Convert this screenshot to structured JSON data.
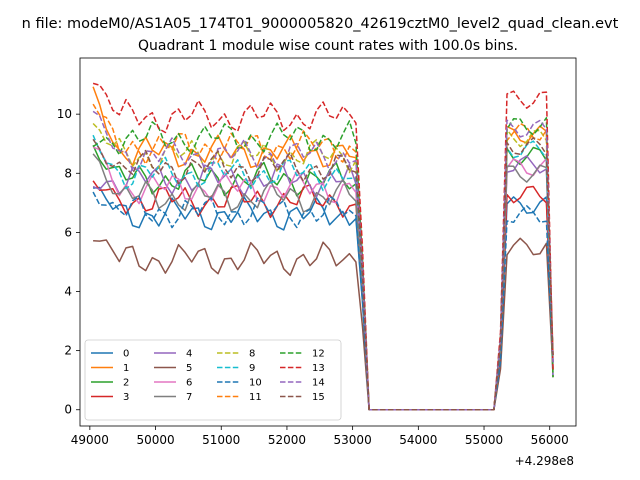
{
  "figure": {
    "suptitle": "n file: modeM0/AS1A05_174T01_9000005820_42619cztM0_level2_quad_clean.evt"
  },
  "chart_data": {
    "type": "line",
    "title": "Quadrant 1 module wise count rates with 100.0s bins.",
    "xlabel": "",
    "ylabel": "",
    "x_offset_label": "+4.298e8",
    "xlim": [
      48850,
      56400
    ],
    "ylim": [
      -0.55,
      11.9
    ],
    "x_ticks": [
      49000,
      50000,
      51000,
      52000,
      53000,
      54000,
      55000,
      56000
    ],
    "x_tick_labels": [
      "49000",
      "50000",
      "51000",
      "52000",
      "53000",
      "54000",
      "55000",
      "56000"
    ],
    "y_ticks": [
      0,
      2,
      4,
      6,
      8,
      10
    ],
    "y_tick_labels": [
      "0",
      "2",
      "4",
      "6",
      "8",
      "10"
    ],
    "grid": false,
    "legend_position": "lower-left",
    "legend_columns": 4,
    "x": [
      49050,
      55150,
      55250,
      55350,
      55450,
      55550,
      55650,
      55750,
      55850,
      55950,
      56050
    ],
    "series": [
      {
        "name": "0",
        "color": "#1f77b4",
        "dash": "solid"
      },
      {
        "name": "1",
        "color": "#ff7f0e",
        "dash": "solid"
      },
      {
        "name": "2",
        "color": "#2ca02c",
        "dash": "solid"
      },
      {
        "name": "3",
        "color": "#d62728",
        "dash": "solid"
      },
      {
        "name": "4",
        "color": "#9467bd",
        "dash": "solid"
      },
      {
        "name": "5",
        "color": "#8c564b",
        "dash": "solid"
      },
      {
        "name": "6",
        "color": "#e377c2",
        "dash": "solid"
      },
      {
        "name": "7",
        "color": "#7f7f7f",
        "dash": "solid"
      },
      {
        "name": "8",
        "color": "#bcbd22",
        "dash": "dashed"
      },
      {
        "name": "9",
        "color": "#17becf",
        "dash": "dashed"
      },
      {
        "name": "10",
        "color": "#1f77b4",
        "dash": "dashed"
      },
      {
        "name": "11",
        "color": "#ff7f0e",
        "dash": "dashed"
      },
      {
        "name": "12",
        "color": "#2ca02c",
        "dash": "dashed"
      },
      {
        "name": "13",
        "color": "#d62728",
        "dash": "dashed"
      },
      {
        "name": "14",
        "color": "#9467bd",
        "dash": "dashed"
      },
      {
        "name": "15",
        "color": "#8c564b",
        "dash": "dashed"
      }
    ],
    "series_levels": {
      "0": {
        "first": 7.5,
        "active": 6.6,
        "resume": 6.9
      },
      "1": {
        "first": 10.7,
        "active": 8.7,
        "resume": 9.3
      },
      "2": {
        "first": 8.9,
        "active": 7.8,
        "resume": 8.6
      },
      "3": {
        "first": 7.6,
        "active": 7.1,
        "resume": 7.3
      },
      "4": {
        "first": 7.6,
        "active": 7.8,
        "resume": 8.3
      },
      "5": {
        "first": 6.0,
        "active": 5.1,
        "resume": 5.5
      },
      "6": {
        "first": 8.9,
        "active": 7.5,
        "resume": 8.2
      },
      "7": {
        "first": 8.7,
        "active": 7.2,
        "resume": 8.0
      },
      "8": {
        "first": 9.6,
        "active": 8.6,
        "resume": 9.2
      },
      "9": {
        "first": 9.0,
        "active": 8.0,
        "resume": 8.8
      },
      "10": {
        "first": 7.4,
        "active": 6.7,
        "resume": 6.6
      },
      "11": {
        "first": 10.4,
        "active": 8.9,
        "resume": 9.4
      },
      "12": {
        "first": 9.0,
        "active": 9.2,
        "resume": 9.6
      },
      "13": {
        "first": 11.3,
        "active": 9.9,
        "resume": 10.5
      },
      "14": {
        "first": 10.0,
        "active": 8.6,
        "resume": 9.5
      },
      "15": {
        "first": 9.0,
        "active": 8.2,
        "resume": 8.9
      }
    },
    "drop_start_x": 53050,
    "zero_start_x": 53250,
    "zero_end_x": 55150,
    "last_x": 56050
  }
}
